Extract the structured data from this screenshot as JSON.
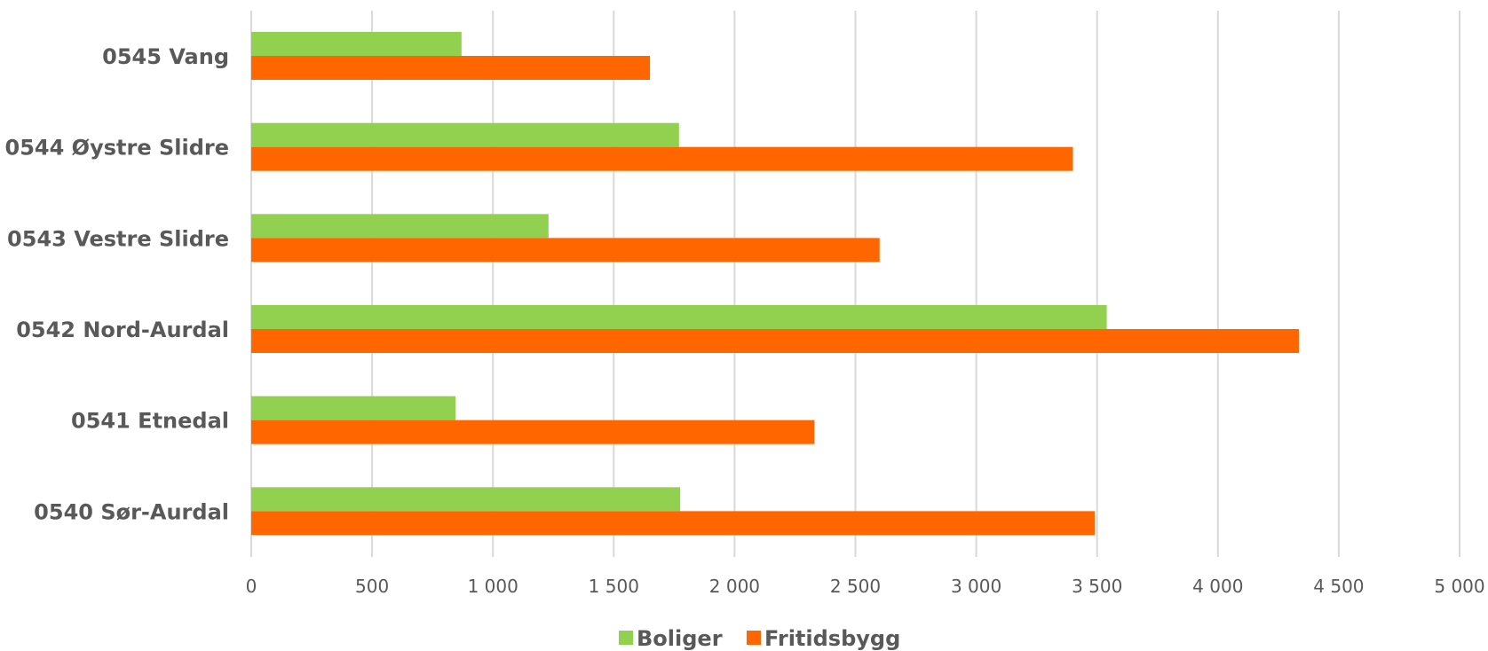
{
  "chart_data": {
    "type": "bar",
    "orientation": "horizontal",
    "categories": [
      "0545 Vang",
      "0544 Øystre Slidre",
      "0543 Vestre Slidre",
      "0542 Nord-Aurdal",
      "0541 Etnedal",
      "0540 Sør-Aurdal"
    ],
    "series": [
      {
        "name": "Boliger",
        "color": "#92d050",
        "values": [
          870,
          1770,
          1230,
          3540,
          845,
          1775
        ]
      },
      {
        "name": "Fritidsbygg",
        "color": "#ff6600",
        "values": [
          1650,
          3400,
          2600,
          4335,
          2330,
          3490
        ]
      }
    ],
    "xlim": [
      0,
      5000
    ],
    "ticks": [
      {
        "value": 0,
        "label": "0"
      },
      {
        "value": 500,
        "label": "500"
      },
      {
        "value": 1000,
        "label": "1 000"
      },
      {
        "value": 1500,
        "label": "1 500"
      },
      {
        "value": 2000,
        "label": "2 000"
      },
      {
        "value": 2500,
        "label": "2 500"
      },
      {
        "value": 3000,
        "label": "3 000"
      },
      {
        "value": 3500,
        "label": "3 500"
      },
      {
        "value": 4000,
        "label": "4 000"
      },
      {
        "value": 4500,
        "label": "4 500"
      },
      {
        "value": 5000,
        "label": "5 000"
      }
    ],
    "grid": "vertical",
    "legend_position": "bottom"
  }
}
